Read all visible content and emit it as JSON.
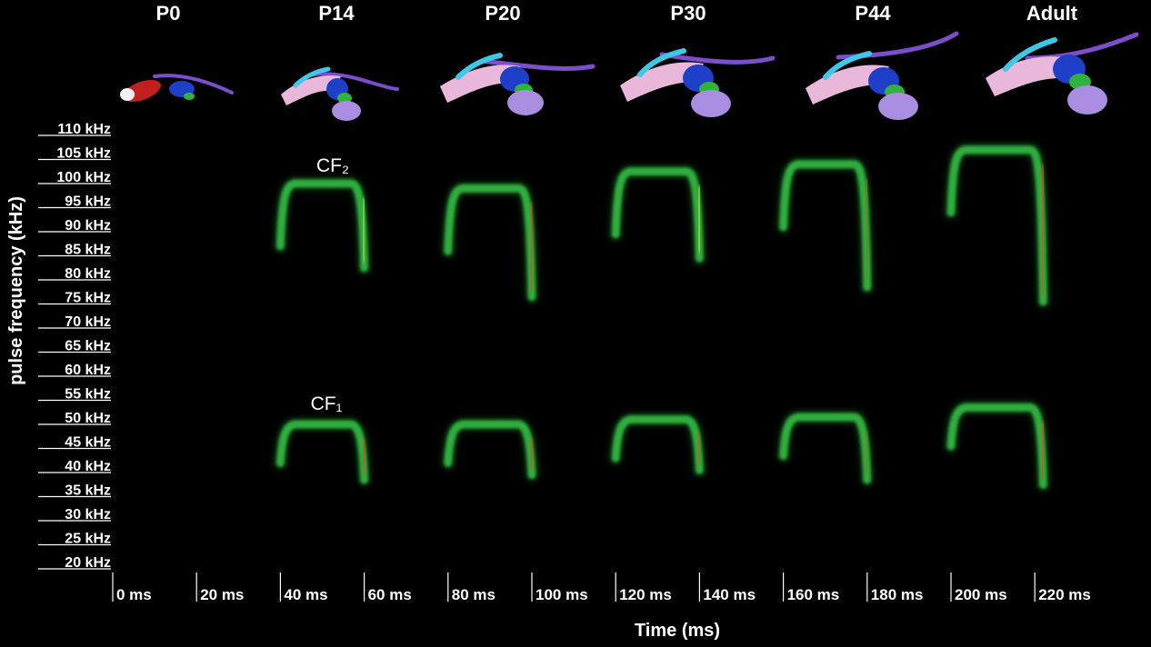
{
  "chart_data": {
    "type": "spectrogram",
    "stages": [
      "P0",
      "P14",
      "P20",
      "P30",
      "P44",
      "Adult"
    ],
    "xlabel": "Time (ms)",
    "ylabel": "pulse frequency (kHz)",
    "x_unit": "ms",
    "y_unit": "kHz",
    "xlim": [
      0,
      240
    ],
    "ylim": [
      17.5,
      112.5
    ],
    "xticks": [
      0,
      20,
      40,
      60,
      80,
      100,
      120,
      140,
      160,
      180,
      200,
      220
    ],
    "xtick_labels": [
      "0 ms",
      "20 ms",
      "40 ms",
      "60 ms",
      "80 ms",
      "100 ms",
      "120 ms",
      "140 ms",
      "160 ms",
      "180 ms",
      "200 ms",
      "220 ms"
    ],
    "yticks": [
      110,
      105,
      100,
      95,
      90,
      85,
      80,
      75,
      70,
      65,
      60,
      55,
      50,
      45,
      40,
      35,
      30,
      25,
      20
    ],
    "ytick_labels": [
      "110 kHz",
      "105 kHz",
      "100 kHz",
      "95 kHz",
      "90 kHz",
      "85 kHz",
      "80 kHz",
      "75 kHz",
      "70 kHz",
      "65 kHz",
      "60 kHz",
      "55 kHz",
      "50 kHz",
      "45 kHz",
      "40 kHz",
      "35 kHz",
      "30 kHz",
      "25 kHz",
      "20 kHz"
    ],
    "annotations": [
      {
        "text": "CF₂",
        "x": 52.5,
        "y": 102.5
      },
      {
        "text": "CF₁",
        "x": 51,
        "y": 53
      }
    ],
    "series": [
      {
        "stage": "P14",
        "harmonic": "CF2",
        "x_start": 40,
        "x_end": 60,
        "cf_khz": 98.5,
        "fm_end_khz": 81
      },
      {
        "stage": "P14",
        "harmonic": "CF1",
        "x_start": 40,
        "x_end": 60,
        "cf_khz": 48.5,
        "fm_end_khz": 37
      },
      {
        "stage": "P20",
        "harmonic": "CF2",
        "x_start": 80,
        "x_end": 100,
        "cf_khz": 97.5,
        "fm_end_khz": 75
      },
      {
        "stage": "P20",
        "harmonic": "CF1",
        "x_start": 80,
        "x_end": 100,
        "cf_khz": 48.5,
        "fm_end_khz": 38
      },
      {
        "stage": "P30",
        "harmonic": "CF2",
        "x_start": 120,
        "x_end": 140,
        "cf_khz": 101,
        "fm_end_khz": 83
      },
      {
        "stage": "P30",
        "harmonic": "CF1",
        "x_start": 120,
        "x_end": 140,
        "cf_khz": 49.5,
        "fm_end_khz": 39
      },
      {
        "stage": "P44",
        "harmonic": "CF2",
        "x_start": 160,
        "x_end": 180,
        "cf_khz": 102.5,
        "fm_end_khz": 77
      },
      {
        "stage": "P44",
        "harmonic": "CF1",
        "x_start": 160,
        "x_end": 180,
        "cf_khz": 50,
        "fm_end_khz": 37
      },
      {
        "stage": "Adult",
        "harmonic": "CF2",
        "x_start": 200,
        "x_end": 222,
        "cf_khz": 105.5,
        "fm_end_khz": 74
      },
      {
        "stage": "Adult",
        "harmonic": "CF1",
        "x_start": 200,
        "x_end": 222,
        "cf_khz": 52,
        "fm_end_khz": 36
      }
    ]
  },
  "colors": {
    "background": "#000000",
    "text": "#ffffff",
    "spectrogram_low": "#0a3d1a",
    "spectrogram_mid": "#2fae3d",
    "spectrogram_high": "#9fe04a",
    "spectrogram_peak": "#e8461e",
    "anatomy_pink": "#e9b7da",
    "anatomy_purple": "#7a4fc9",
    "anatomy_blue": "#1e3fc8",
    "anatomy_cyan": "#3fc8e6",
    "anatomy_green": "#2fb33a",
    "anatomy_lavender": "#a98de0",
    "anatomy_red": "#c21f1f"
  }
}
